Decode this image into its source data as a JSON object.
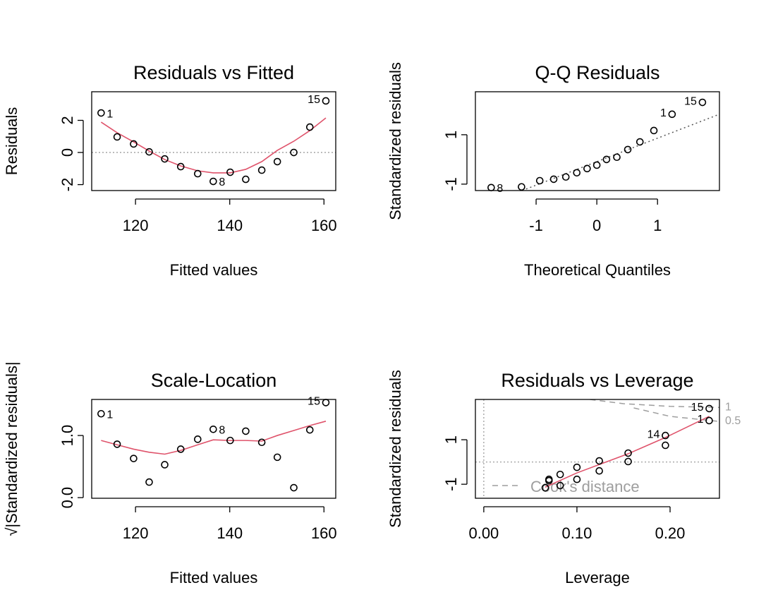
{
  "chart_data": [
    {
      "type": "scatter",
      "title": "Residuals vs Fitted",
      "x_label": "Fitted values",
      "y_label": "Residuals",
      "x": [
        112.7,
        116.1,
        119.6,
        122.9,
        126.2,
        129.6,
        133.2,
        136.5,
        140.1,
        143.4,
        146.8,
        150.1,
        153.6,
        157.0,
        160.4
      ],
      "values": [
        2.46,
        0.97,
        0.53,
        0.04,
        -0.4,
        -0.88,
        -1.32,
        -1.8,
        -1.23,
        -1.67,
        -1.1,
        -0.57,
        0,
        1.58,
        3.21
      ],
      "point_labels": [
        "1",
        null,
        null,
        null,
        null,
        null,
        null,
        "8",
        null,
        null,
        null,
        null,
        null,
        null,
        "15"
      ],
      "smooth": {
        "color": "#df536b",
        "x": [
          112.7,
          116.1,
          119.6,
          122.9,
          126.2,
          129.6,
          133.2,
          136.5,
          140.1,
          143.4,
          146.8,
          150.1,
          153.6,
          157.0,
          160.4
        ],
        "y": [
          1.89,
          1.23,
          0.66,
          0.09,
          -0.44,
          -0.84,
          -1.14,
          -1.27,
          -1.27,
          -1.05,
          -0.57,
          0.13,
          0.7,
          1.36,
          2.15
        ]
      },
      "zero_line": 0,
      "xlim": [
        110.7,
        162.5
      ],
      "ylim": [
        -2.37,
        3.78
      ],
      "xticks": [
        120,
        140,
        160
      ],
      "yticks": [
        -2,
        0,
        2
      ]
    },
    {
      "type": "scatter",
      "title": "Q-Q Residuals",
      "x_label": "Theoretical Quantiles",
      "y_label": "Standardized residuals",
      "x": [
        -1.74,
        -1.24,
        -0.94,
        -0.71,
        -0.51,
        -0.33,
        -0.16,
        0,
        0.16,
        0.33,
        0.51,
        0.71,
        0.94,
        1.24,
        1.74
      ],
      "values": [
        -1.14,
        -1.11,
        -0.86,
        -0.8,
        -0.71,
        -0.54,
        -0.37,
        -0.23,
        0.0,
        0.09,
        0.4,
        0.71,
        1.17,
        1.83,
        2.31
      ],
      "point_labels": [
        "8",
        null,
        null,
        null,
        null,
        null,
        null,
        null,
        null,
        null,
        null,
        null,
        null,
        "1",
        "15"
      ],
      "ref_line": {
        "x": [
          -1.23,
          2.02
        ],
        "y": [
          -1.26,
          1.83
        ]
      },
      "xlim": [
        -2.0,
        2.02
      ],
      "ylim": [
        -1.26,
        2.74
      ],
      "xticks": [
        -1,
        0,
        1
      ],
      "yticks": [
        -1,
        1
      ]
    },
    {
      "type": "scatter",
      "title": "Scale-Location",
      "x_label": "Fitted values",
      "y_label": "√|Standardized residuals|",
      "x": [
        112.7,
        116.1,
        119.6,
        122.9,
        126.2,
        129.6,
        133.2,
        136.5,
        140.1,
        143.4,
        146.8,
        150.1,
        153.6,
        157.0,
        160.4
      ],
      "values": [
        1.35,
        0.86,
        0.63,
        0.25,
        0.53,
        0.78,
        0.94,
        1.1,
        0.92,
        1.07,
        0.89,
        0.65,
        0.16,
        1.09,
        1.53
      ],
      "point_labels": [
        "1",
        null,
        null,
        null,
        null,
        null,
        null,
        "8",
        null,
        null,
        null,
        null,
        null,
        null,
        "15"
      ],
      "smooth": {
        "color": "#df536b",
        "x": [
          112.7,
          116.1,
          119.6,
          122.9,
          126.2,
          129.6,
          133.2,
          136.5,
          140.1,
          143.4,
          146.8,
          150.1,
          153.6,
          157.0,
          160.4
        ],
        "y": [
          0.92,
          0.85,
          0.78,
          0.73,
          0.7,
          0.76,
          0.85,
          0.93,
          0.92,
          0.92,
          0.91,
          1.0,
          1.08,
          1.16,
          1.23
        ]
      },
      "xlim": [
        110.7,
        162.5
      ],
      "ylim": [
        -0.01,
        1.58
      ],
      "xticks": [
        120,
        140,
        160
      ],
      "yticks": [
        {
          "value": 0,
          "label": "0.0"
        },
        {
          "value": 1,
          "label": "1.0"
        }
      ]
    },
    {
      "type": "scatter",
      "title": "Residuals vs Leverage",
      "x_label": "Leverage",
      "y_label": "Standardized residuals",
      "x": [
        0.066,
        0.07,
        0.07,
        0.082,
        0.082,
        0.1,
        0.1,
        0.124,
        0.124,
        0.155,
        0.155,
        0.195,
        0.195,
        0.242,
        0.242
      ],
      "values": [
        -1.16,
        -0.84,
        -0.78,
        -0.56,
        -1.06,
        -0.24,
        -0.78,
        0.05,
        -0.4,
        0.4,
        0.02,
        1.19,
        0.75,
        2.4,
        1.86
      ],
      "point_labels": [
        null,
        null,
        null,
        null,
        null,
        null,
        null,
        null,
        null,
        null,
        null,
        "14",
        null,
        "15",
        "1"
      ],
      "smooth": {
        "color": "#df536b",
        "x": [
          0.066,
          0.1,
          0.155,
          0.195,
          0.242
        ],
        "y": [
          -1.13,
          -0.49,
          0.37,
          1.1,
          2.05
        ]
      },
      "zero_line": 0,
      "zero_vline": 0,
      "cook_lines": [
        {
          "level": 1,
          "x": [
            0.114,
            0.15,
            0.2,
            0.253
          ],
          "y": [
            2.81,
            2.62,
            2.5,
            2.45
          ]
        },
        {
          "level": 0.5,
          "x": [
            0.161,
            0.2,
            0.251
          ],
          "y": [
            2.43,
            2.05,
            1.83
          ]
        }
      ],
      "legend": "Cook's distance",
      "xlim": [
        -0.009,
        0.253
      ],
      "ylim": [
        -1.63,
        2.81
      ],
      "xticks": [
        {
          "value": 0,
          "label": "0.00"
        },
        {
          "value": 0.1,
          "label": "0.10"
        },
        {
          "value": 0.2,
          "label": "0.20"
        }
      ],
      "yticks": [
        -1,
        1
      ]
    }
  ]
}
